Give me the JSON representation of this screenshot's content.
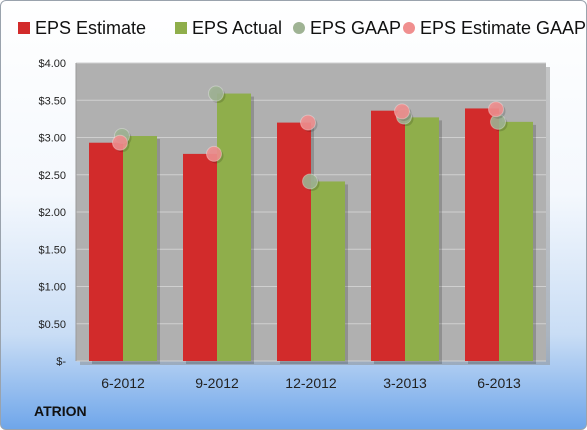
{
  "chart_data": {
    "type": "bar",
    "categories": [
      "6-2012",
      "9-2012",
      "12-2012",
      "3-2013",
      "6-2013"
    ],
    "series": [
      {
        "name": "EPS Estimate",
        "kind": "bar",
        "color": "#d22b2b",
        "values": [
          2.93,
          2.78,
          3.2,
          3.36,
          3.39
        ]
      },
      {
        "name": "EPS Actual",
        "kind": "bar",
        "color": "#8fae4b",
        "values": [
          3.02,
          3.59,
          2.41,
          3.27,
          3.21
        ]
      },
      {
        "name": "EPS GAAP",
        "kind": "dot",
        "color": "#9fb394",
        "values": [
          3.02,
          3.59,
          2.41,
          3.28,
          3.21
        ]
      },
      {
        "name": "EPS Estimate GAAP",
        "kind": "dot",
        "color": "#f08f8f",
        "values": [
          2.93,
          2.78,
          3.2,
          3.35,
          3.38
        ]
      }
    ],
    "ylim": [
      0,
      4
    ],
    "yticks": [
      0,
      0.5,
      1,
      1.5,
      2,
      2.5,
      3,
      3.5,
      4
    ],
    "ytick_labels": [
      "$-",
      "$0.50",
      "$1.00",
      "$1.50",
      "$2.00",
      "$2.50",
      "$3.00",
      "$3.50",
      "$4.00"
    ],
    "grid": true,
    "legend": "top",
    "plot_background": "#b0b0b0"
  },
  "company": "ATRION"
}
